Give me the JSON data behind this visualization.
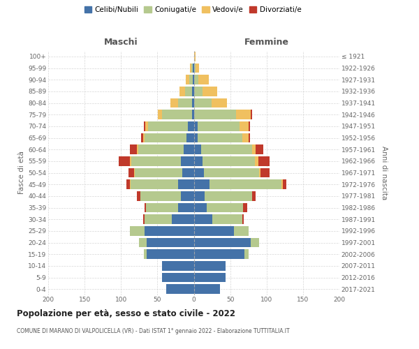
{
  "age_groups": [
    "0-4",
    "5-9",
    "10-14",
    "15-19",
    "20-24",
    "25-29",
    "30-34",
    "35-39",
    "40-44",
    "45-49",
    "50-54",
    "55-59",
    "60-64",
    "65-69",
    "70-74",
    "75-79",
    "80-84",
    "85-89",
    "90-94",
    "95-99",
    "100+"
  ],
  "birth_years": [
    "2017-2021",
    "2012-2016",
    "2007-2011",
    "2002-2006",
    "1997-2001",
    "1992-1996",
    "1987-1991",
    "1982-1986",
    "1977-1981",
    "1972-1976",
    "1967-1971",
    "1962-1966",
    "1957-1961",
    "1952-1956",
    "1947-1951",
    "1942-1946",
    "1937-1941",
    "1932-1936",
    "1927-1931",
    "1922-1926",
    "≤ 1921"
  ],
  "colors": {
    "celibi": "#4472a8",
    "coniugati": "#b5c98e",
    "vedovi": "#f0c060",
    "divorziati": "#c0392b"
  },
  "males": {
    "celibi": [
      38,
      44,
      44,
      65,
      65,
      68,
      30,
      22,
      18,
      22,
      16,
      18,
      14,
      10,
      8,
      2,
      2,
      2,
      1,
      1,
      0
    ],
    "coniugati": [
      0,
      0,
      0,
      4,
      10,
      20,
      38,
      44,
      55,
      65,
      65,
      68,
      62,
      58,
      55,
      42,
      20,
      10,
      5,
      2,
      0
    ],
    "vedovi": [
      0,
      0,
      0,
      0,
      0,
      0,
      0,
      0,
      0,
      1,
      1,
      2,
      2,
      2,
      4,
      5,
      10,
      8,
      5,
      2,
      0
    ],
    "divorziati": [
      0,
      0,
      0,
      0,
      0,
      0,
      2,
      2,
      5,
      5,
      8,
      15,
      10,
      2,
      2,
      0,
      0,
      0,
      0,
      0,
      0
    ]
  },
  "females": {
    "celibi": [
      36,
      44,
      44,
      70,
      78,
      55,
      25,
      18,
      15,
      22,
      14,
      12,
      10,
      5,
      5,
      0,
      0,
      0,
      0,
      0,
      0
    ],
    "coniugati": [
      0,
      0,
      0,
      5,
      12,
      20,
      42,
      50,
      65,
      98,
      76,
      72,
      70,
      62,
      58,
      58,
      24,
      12,
      6,
      2,
      0
    ],
    "vedovi": [
      0,
      0,
      0,
      0,
      0,
      0,
      0,
      0,
      0,
      2,
      2,
      5,
      5,
      8,
      12,
      20,
      22,
      20,
      15,
      5,
      2
    ],
    "divorziati": [
      0,
      0,
      0,
      0,
      0,
      0,
      2,
      5,
      5,
      5,
      12,
      15,
      10,
      2,
      2,
      2,
      0,
      0,
      0,
      0,
      0
    ]
  },
  "title": "Popolazione per età, sesso e stato civile - 2022",
  "subtitle": "COMUNE DI MARANO DI VALPOLICELLA (VR) - Dati ISTAT 1° gennaio 2022 - Elaborazione TUTTITALIA.IT",
  "xlabel_left": "Maschi",
  "xlabel_right": "Femmine",
  "ylabel_left": "Fasce di età",
  "ylabel_right": "Anni di nascita",
  "xlim": 200,
  "legend_labels": [
    "Celibi/Nubili",
    "Coniugati/e",
    "Vedovi/e",
    "Divorziati/e"
  ],
  "background_color": "#ffffff",
  "grid_color": "#cccccc"
}
